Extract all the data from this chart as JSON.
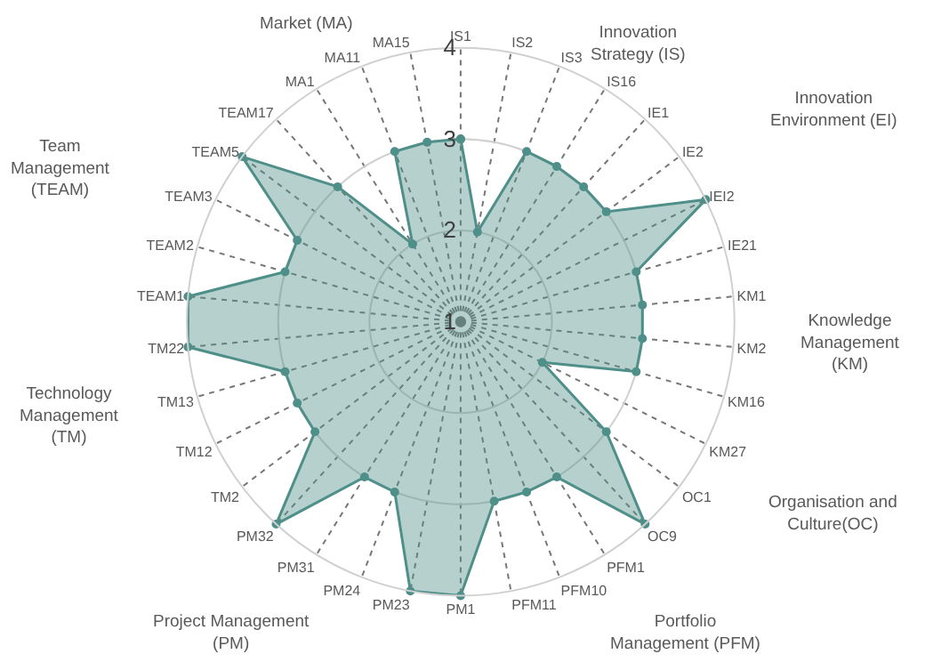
{
  "chart_data": {
    "type": "radar",
    "categories": [
      "IS1",
      "IS2",
      "IS3",
      "IS16",
      "IE1",
      "IE2",
      "IEI2",
      "IE21",
      "KM1",
      "KM2",
      "KM16",
      "KM27",
      "OC1",
      "OC9",
      "PFM1",
      "PFM10",
      "PFM11",
      "PM1",
      "PM23",
      "PM24",
      "PM31",
      "PM32",
      "TM2",
      "TM12",
      "TM13",
      "TM22",
      "TEAM1",
      "TEAM2",
      "TEAM3",
      "TEAM5",
      "TEAM17",
      "MA1",
      "MA11",
      "MA15"
    ],
    "series": [
      {
        "color": "#4f8f89",
        "values": [
          3,
          2,
          3,
          3,
          3,
          3,
          4,
          3,
          3,
          3,
          3,
          2,
          3,
          4,
          3,
          3,
          3,
          4,
          4,
          3,
          3,
          4,
          3,
          3,
          3,
          4,
          4,
          3,
          3,
          4,
          3,
          2,
          3,
          3
        ]
      }
    ],
    "ylim": [
      1,
      4
    ],
    "yticks": [
      1,
      2,
      3,
      4
    ],
    "grid": true,
    "marker": "circle",
    "line_style": "solid",
    "annotations": [
      "Innovation\nStrategy (IS)",
      "Innovation\nEnvironment (EI)",
      "Knowledge\nManagement\n(KM)",
      "Organisation and\nCulture(OC)",
      "Portfolio\nManagement (PFM)",
      "Project Management\n(PM)",
      "Technology\nManagement\n(TM)",
      "Team\nManagement\n(TEAM)",
      "Market (MA)"
    ]
  }
}
